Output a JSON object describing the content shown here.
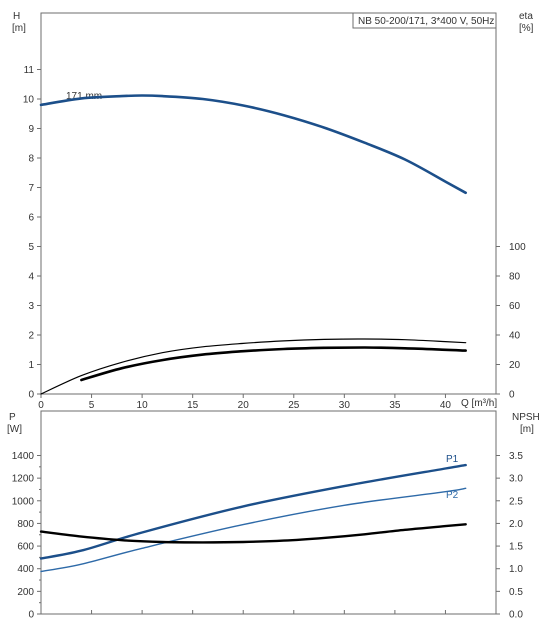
{
  "chart_data": [
    {
      "type": "line",
      "title": "NB 50-200/171, 3*400 V, 50Hz",
      "xlabel": "Q [m³/h]",
      "ylabel_left": "H",
      "ylabel_left_unit": "[m]",
      "ylabel_right": "eta",
      "ylabel_right_unit": "[%]",
      "xlim": [
        0,
        45
      ],
      "ylim_left": [
        0,
        12
      ],
      "ylim_right": [
        0,
        120
      ],
      "x_ticks": [
        0,
        5,
        10,
        15,
        20,
        25,
        30,
        35,
        40
      ],
      "y_left_ticks": [
        0,
        1,
        2,
        3,
        4,
        5,
        6,
        7,
        8,
        9,
        10,
        11
      ],
      "y_right_ticks": [
        0,
        20,
        40,
        60,
        80,
        100
      ],
      "grid": false,
      "series": [
        {
          "name": "171 mm",
          "axis": "left",
          "color": "#1c4f8a",
          "x": [
            0,
            4,
            8,
            10,
            12,
            16,
            20,
            24,
            28,
            32,
            36,
            40,
            42
          ],
          "y": [
            9.8,
            10.02,
            10.1,
            10.12,
            10.1,
            10.0,
            9.78,
            9.45,
            9.03,
            8.52,
            7.95,
            7.2,
            6.82
          ]
        },
        {
          "axis": "right",
          "color": "#000000",
          "x": [
            0,
            4,
            8,
            12,
            16,
            20,
            24,
            28,
            32,
            36,
            40,
            42
          ],
          "y": [
            0,
            12.5,
            21.5,
            28.0,
            32.0,
            34.3,
            36.0,
            37.0,
            37.3,
            36.8,
            35.5,
            34.8
          ]
        },
        {
          "axis": "right",
          "color": "#000000",
          "x": [
            4,
            8,
            12,
            16,
            20,
            24,
            28,
            32,
            36,
            40,
            42
          ],
          "y": [
            9.5,
            17.5,
            23.0,
            26.7,
            29.0,
            30.5,
            31.3,
            31.5,
            31.0,
            30.0,
            29.4
          ]
        }
      ]
    },
    {
      "type": "line",
      "xlabel": "",
      "ylabel_left": "P",
      "ylabel_left_unit": "[W]",
      "ylabel_right": "NPSH",
      "ylabel_right_unit": "[m]",
      "xlim": [
        0,
        45
      ],
      "ylim_left": [
        0,
        1400
      ],
      "ylim_right": [
        0,
        3.5
      ],
      "y_left_ticks": [
        0,
        200,
        400,
        600,
        800,
        1000,
        1200,
        1400
      ],
      "y_right_ticks": [
        0.0,
        0.5,
        1.0,
        1.5,
        2.0,
        2.5,
        3.0,
        3.5
      ],
      "y_right_tick_labels": [
        "0.0",
        "0.5",
        "1.0",
        "1.5",
        "2.0",
        "2.5",
        "3.0",
        "3.5"
      ],
      "grid": false,
      "series": [
        {
          "name": "P1",
          "axis": "left",
          "color": "#1c4f8a",
          "x": [
            0,
            4,
            10,
            20,
            30,
            40,
            42
          ],
          "y": [
            490,
            560,
            720,
            950,
            1130,
            1285,
            1315
          ]
        },
        {
          "name": "P2",
          "axis": "left",
          "color": "#2e6aa8",
          "x": [
            0,
            4,
            10,
            20,
            30,
            40,
            42
          ],
          "y": [
            375,
            440,
            580,
            790,
            960,
            1080,
            1110
          ]
        },
        {
          "axis": "right",
          "color": "#000000",
          "x": [
            0,
            4,
            8,
            12,
            16,
            20,
            24,
            28,
            32,
            36,
            40,
            42
          ],
          "y": [
            1.82,
            1.71,
            1.63,
            1.59,
            1.58,
            1.59,
            1.62,
            1.68,
            1.76,
            1.86,
            1.94,
            1.98
          ]
        }
      ]
    }
  ]
}
